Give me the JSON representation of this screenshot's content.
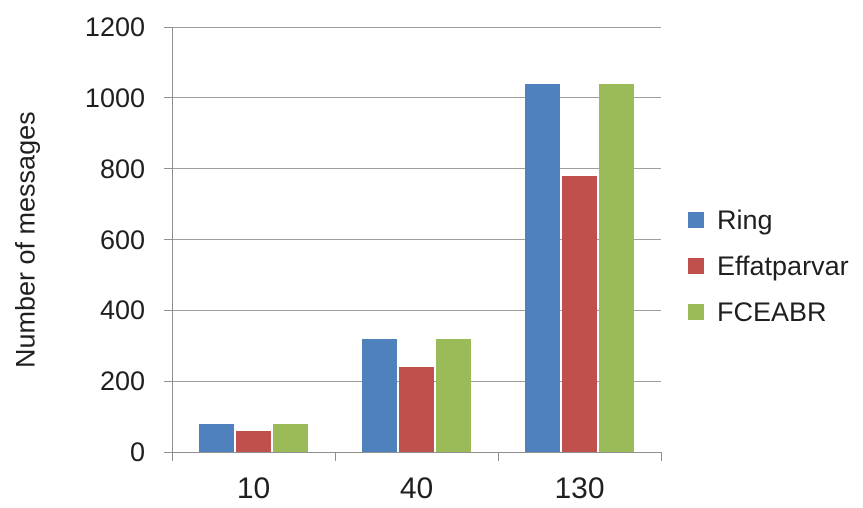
{
  "chart_data": {
    "type": "bar",
    "title": "",
    "categories": [
      "10",
      "40",
      "130"
    ],
    "series": [
      {
        "name": "Ring",
        "color": "#4F81BD",
        "values": [
          80,
          320,
          1040
        ]
      },
      {
        "name": "Effatparvar",
        "color": "#C0504D",
        "values": [
          60,
          240,
          780
        ]
      },
      {
        "name": "FCEABR",
        "color": "#9BBB59",
        "values": [
          80,
          320,
          1040
        ]
      }
    ],
    "xlabel": "",
    "ylabel": "Number of messages",
    "ylim": [
      0,
      1200
    ],
    "ytick_step": 200,
    "grid": true,
    "legend_position": "right"
  },
  "colors": {
    "gridline": "#9f9f9f",
    "axis": "#8f8f8f",
    "text": "#1f1f1f",
    "background": "#ffffff"
  }
}
